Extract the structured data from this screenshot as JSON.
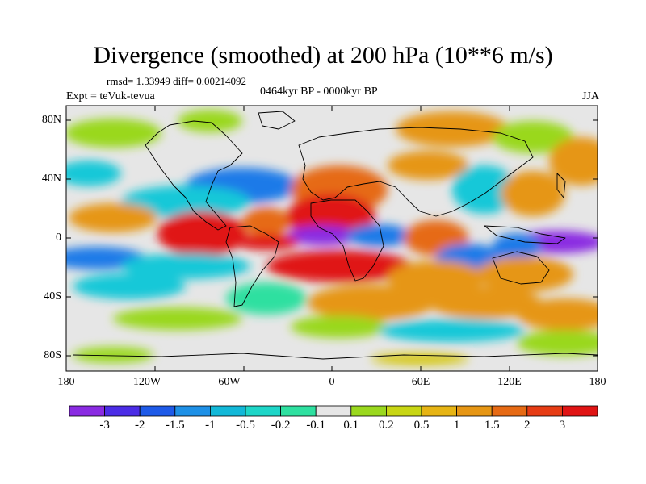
{
  "title": "Divergence (smoothed) at 200 hPa (10**6 m/s)",
  "stats": "rmsd= 1.33949 diff= 0.00214092",
  "experiment": "Expt = teVuk-tevua",
  "period": "0464kyr BP - 0000kyr BP",
  "season": "JJA",
  "lat_labels": [
    "80N",
    "40N",
    "0",
    "40S",
    "80S"
  ],
  "lon_labels": [
    "180",
    "120W",
    "60W",
    "0",
    "60E",
    "120E",
    "180"
  ],
  "colorbar": {
    "labels": [
      "-3",
      "-2",
      "-1.5",
      "-1",
      "-0.5",
      "-0.2",
      "-0.1",
      "0.1",
      "0.2",
      "0.5",
      "1",
      "1.5",
      "2",
      "3"
    ],
    "colors": [
      "#8a2be2",
      "#4b2ce6",
      "#1e5ae8",
      "#1e90e6",
      "#12b8d8",
      "#1ed6c8",
      "#2ee0a0",
      "#e6e6e6",
      "#9ad81e",
      "#c8d614",
      "#e6b414",
      "#e69614",
      "#e66a14",
      "#e63c14",
      "#e01414"
    ]
  },
  "map_palette": {
    "neutral": "#e6e6e6",
    "purple": "#8a2be2",
    "deep_blue": "#3a3ae6",
    "blue": "#1e7ae8",
    "cyan": "#14c8d8",
    "teal": "#2ee0a0",
    "green": "#9ad81e",
    "yellow": "#d6c814",
    "orange": "#e69614",
    "red_orange": "#e66a14",
    "red": "#e01414"
  }
}
